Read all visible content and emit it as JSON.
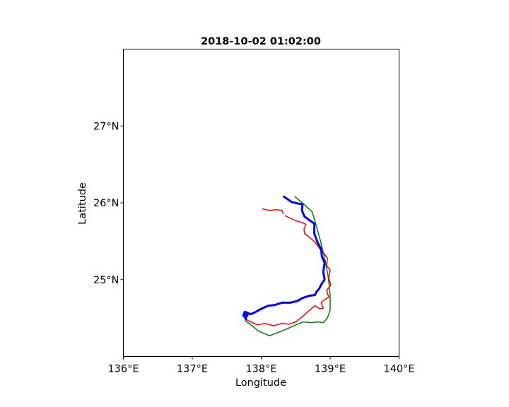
{
  "chart_data": {
    "type": "line",
    "title": "2018-10-02 01:02:00",
    "xlabel": "Longitude",
    "ylabel": "Latitude",
    "xlim": [
      136,
      140
    ],
    "ylim": [
      24,
      28
    ],
    "grid": false,
    "x_ticks": [
      {
        "value": 136,
        "label": "136°E"
      },
      {
        "value": 137,
        "label": "137°E"
      },
      {
        "value": 138,
        "label": "138°E"
      },
      {
        "value": 139,
        "label": "139°E"
      },
      {
        "value": 140,
        "label": "140°E"
      }
    ],
    "y_ticks": [
      {
        "value": 25,
        "label": "25°N"
      },
      {
        "value": 26,
        "label": "26°N"
      },
      {
        "value": 27,
        "label": "27°N"
      }
    ],
    "series": [
      {
        "color": "#008000",
        "style": "thin",
        "points": [
          [
            138.49,
            26.08
          ],
          [
            138.62,
            25.98
          ],
          [
            138.74,
            25.88
          ],
          [
            138.8,
            25.7
          ],
          [
            138.86,
            25.5
          ],
          [
            138.92,
            25.28
          ],
          [
            138.97,
            25.05
          ],
          [
            139.0,
            24.8
          ],
          [
            139.0,
            24.6
          ],
          [
            138.96,
            24.5
          ],
          [
            138.9,
            24.44
          ],
          [
            138.82,
            24.45
          ],
          [
            138.73,
            24.44
          ],
          [
            138.61,
            24.45
          ],
          [
            138.5,
            24.41
          ],
          [
            138.3,
            24.33
          ],
          [
            138.12,
            24.27
          ],
          [
            137.96,
            24.33
          ],
          [
            137.84,
            24.42
          ],
          [
            137.77,
            24.46
          ]
        ]
      },
      {
        "color": "#ff0000",
        "style": "thin",
        "points": [
          [
            138.35,
            25.83
          ],
          [
            138.49,
            25.77
          ],
          [
            138.6,
            25.74
          ],
          [
            138.65,
            25.72
          ],
          [
            138.62,
            25.66
          ],
          [
            138.63,
            25.6
          ],
          [
            138.7,
            25.55
          ],
          [
            138.78,
            25.49
          ],
          [
            138.85,
            25.4
          ],
          [
            138.92,
            25.33
          ],
          [
            138.96,
            25.28
          ],
          [
            138.95,
            25.18
          ],
          [
            139.0,
            25.13
          ],
          [
            138.98,
            25.02
          ],
          [
            139.01,
            24.93
          ],
          [
            138.95,
            24.86
          ],
          [
            138.98,
            24.77
          ],
          [
            138.92,
            24.74
          ],
          [
            138.87,
            24.7
          ],
          [
            138.9,
            24.63
          ],
          [
            138.85,
            24.62
          ],
          [
            138.78,
            24.66
          ],
          [
            138.7,
            24.6
          ],
          [
            138.6,
            24.52
          ],
          [
            138.5,
            24.45
          ],
          [
            138.4,
            24.42
          ],
          [
            138.3,
            24.43
          ],
          [
            138.18,
            24.4
          ],
          [
            138.05,
            24.43
          ],
          [
            137.95,
            24.41
          ],
          [
            137.85,
            24.45
          ],
          [
            137.78,
            24.48
          ]
        ]
      },
      {
        "color": "#ff0000",
        "style": "thin",
        "points": [
          [
            138.02,
            25.92
          ],
          [
            138.12,
            25.9
          ],
          [
            138.22,
            25.91
          ],
          [
            138.3,
            25.9
          ],
          [
            138.32,
            25.86
          ]
        ]
      },
      {
        "color": "#0000ff",
        "style": "thick",
        "points": [
          [
            138.33,
            26.08
          ],
          [
            138.44,
            26.01
          ],
          [
            138.54,
            25.99
          ],
          [
            138.6,
            25.98
          ],
          [
            138.59,
            25.9
          ],
          [
            138.63,
            25.82
          ],
          [
            138.72,
            25.76
          ],
          [
            138.77,
            25.73
          ],
          [
            138.77,
            25.6
          ],
          [
            138.82,
            25.48
          ],
          [
            138.87,
            25.4
          ],
          [
            138.88,
            25.3
          ],
          [
            138.92,
            25.22
          ],
          [
            138.9,
            25.1
          ],
          [
            138.92,
            25.0
          ],
          [
            138.88,
            24.95
          ],
          [
            138.84,
            24.88
          ],
          [
            138.8,
            24.84
          ],
          [
            138.78,
            24.8
          ],
          [
            138.7,
            24.79
          ],
          [
            138.6,
            24.76
          ],
          [
            138.52,
            24.72
          ],
          [
            138.42,
            24.7
          ],
          [
            138.3,
            24.7
          ],
          [
            138.2,
            24.67
          ],
          [
            138.1,
            24.66
          ],
          [
            138.0,
            24.62
          ],
          [
            137.9,
            24.57
          ],
          [
            137.84,
            24.55
          ],
          [
            137.8,
            24.57
          ],
          [
            137.76,
            24.58
          ],
          [
            137.74,
            24.53
          ],
          [
            137.78,
            24.51
          ],
          [
            137.8,
            24.54
          ],
          [
            137.76,
            24.55
          ],
          [
            137.76,
            24.52
          ],
          [
            137.78,
            24.48
          ]
        ]
      }
    ]
  }
}
